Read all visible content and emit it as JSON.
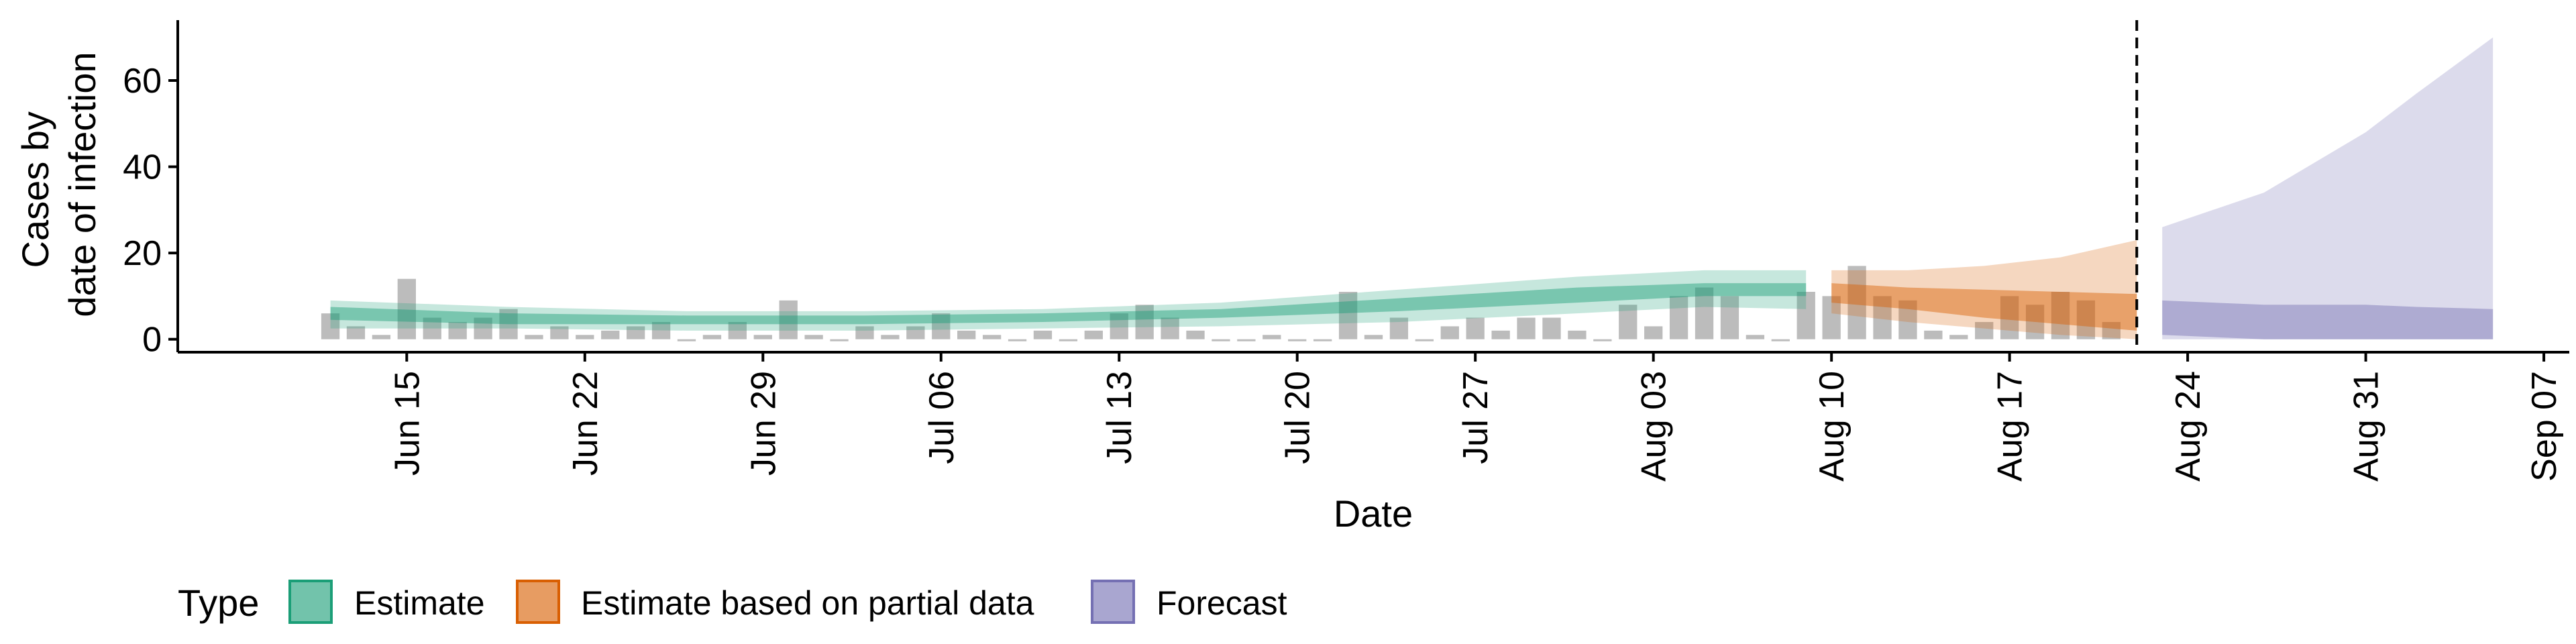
{
  "chart_data": {
    "type": "bar",
    "title": "",
    "xlabel": "Date",
    "ylabel_lines": [
      "Cases by",
      "date of infection"
    ],
    "xlim": [
      "2020-06-06",
      "2020-09-08"
    ],
    "ylim": [
      -3,
      74
    ],
    "yticks": [
      0,
      20,
      40,
      60
    ],
    "x_ticks": [
      {
        "date": "2020-06-15",
        "label": "Jun 15"
      },
      {
        "date": "2020-06-22",
        "label": "Jun 22"
      },
      {
        "date": "2020-06-29",
        "label": "Jun 29"
      },
      {
        "date": "2020-07-06",
        "label": "Jul 06"
      },
      {
        "date": "2020-07-13",
        "label": "Jul 13"
      },
      {
        "date": "2020-07-20",
        "label": "Jul 20"
      },
      {
        "date": "2020-07-27",
        "label": "Jul 27"
      },
      {
        "date": "2020-08-03",
        "label": "Aug 03"
      },
      {
        "date": "2020-08-10",
        "label": "Aug 10"
      },
      {
        "date": "2020-08-17",
        "label": "Aug 17"
      },
      {
        "date": "2020-08-24",
        "label": "Aug 24"
      },
      {
        "date": "2020-08-31",
        "label": "Aug 31"
      },
      {
        "date": "2020-09-07",
        "label": "Sep 07"
      }
    ],
    "forecast_start_line": "2020-08-22",
    "observed_cases": {
      "start_date": "2020-06-12",
      "values": [
        6,
        3,
        1,
        14,
        5,
        4,
        5,
        7,
        1,
        3,
        1,
        2,
        3,
        4,
        0,
        1,
        4,
        1,
        9,
        1,
        0,
        3,
        1,
        3,
        6,
        2,
        1,
        0,
        2,
        0,
        2,
        6,
        8,
        5,
        2,
        0,
        0,
        1,
        0,
        0,
        11,
        1,
        5,
        0,
        3,
        5,
        2,
        5,
        5,
        2,
        0,
        8,
        3,
        10,
        12,
        10,
        1,
        0,
        11,
        10,
        17,
        10,
        9,
        2,
        1,
        4,
        10,
        8,
        11,
        9,
        4
      ]
    },
    "series": [
      {
        "name": "Estimate",
        "color": "#1B9E77",
        "dates": [
          "2020-06-12",
          "2020-06-19",
          "2020-06-26",
          "2020-07-03",
          "2020-07-10",
          "2020-07-17",
          "2020-07-24",
          "2020-07-31",
          "2020-08-05",
          "2020-08-09"
        ],
        "median": [
          6,
          5,
          4.5,
          4.5,
          5,
          6,
          8,
          10.5,
          11.5,
          11.5
        ],
        "inner_lower": [
          4.5,
          3.5,
          3.5,
          3.5,
          4,
          5,
          6.5,
          8.5,
          10,
          10
        ],
        "inner_upper": [
          7.5,
          6,
          5.5,
          5.5,
          6,
          7,
          9.5,
          12,
          13,
          13
        ],
        "outer_lower": [
          2.5,
          2.5,
          2,
          2,
          2.5,
          3,
          4,
          6,
          7.5,
          7
        ],
        "outer_upper": [
          9,
          7.5,
          6.5,
          6.5,
          7,
          8.5,
          11.5,
          14.5,
          16,
          16
        ]
      },
      {
        "name": "Estimate based on partial data",
        "color": "#D95F02",
        "dates": [
          "2020-08-10",
          "2020-08-13",
          "2020-08-16",
          "2020-08-19",
          "2020-08-22"
        ],
        "median": [
          11,
          10,
          9,
          8.5,
          8
        ],
        "inner_lower": [
          8.5,
          7,
          5,
          3.5,
          2
        ],
        "inner_upper": [
          13,
          12,
          11.5,
          11,
          10.5
        ],
        "outer_lower": [
          6,
          4,
          2.5,
          1,
          0
        ],
        "outer_upper": [
          16,
          16,
          17,
          19,
          23
        ]
      },
      {
        "name": "Forecast",
        "color": "#7570B3",
        "dates": [
          "2020-08-23",
          "2020-08-27",
          "2020-08-31",
          "2020-09-02",
          "2020-09-05"
        ],
        "median": [
          5,
          4.5,
          4,
          4,
          4
        ],
        "inner_lower": [
          1,
          0,
          0,
          0,
          0
        ],
        "inner_upper": [
          9,
          8,
          8,
          7.5,
          7
        ],
        "outer_lower": [
          0,
          0,
          0,
          0,
          0
        ],
        "outer_upper": [
          26,
          34,
          48,
          57,
          70
        ]
      }
    ],
    "legend": {
      "title": "Type",
      "position": "bottom",
      "entries": [
        "Estimate",
        "Estimate based on partial data",
        "Forecast"
      ]
    },
    "grid": false
  }
}
